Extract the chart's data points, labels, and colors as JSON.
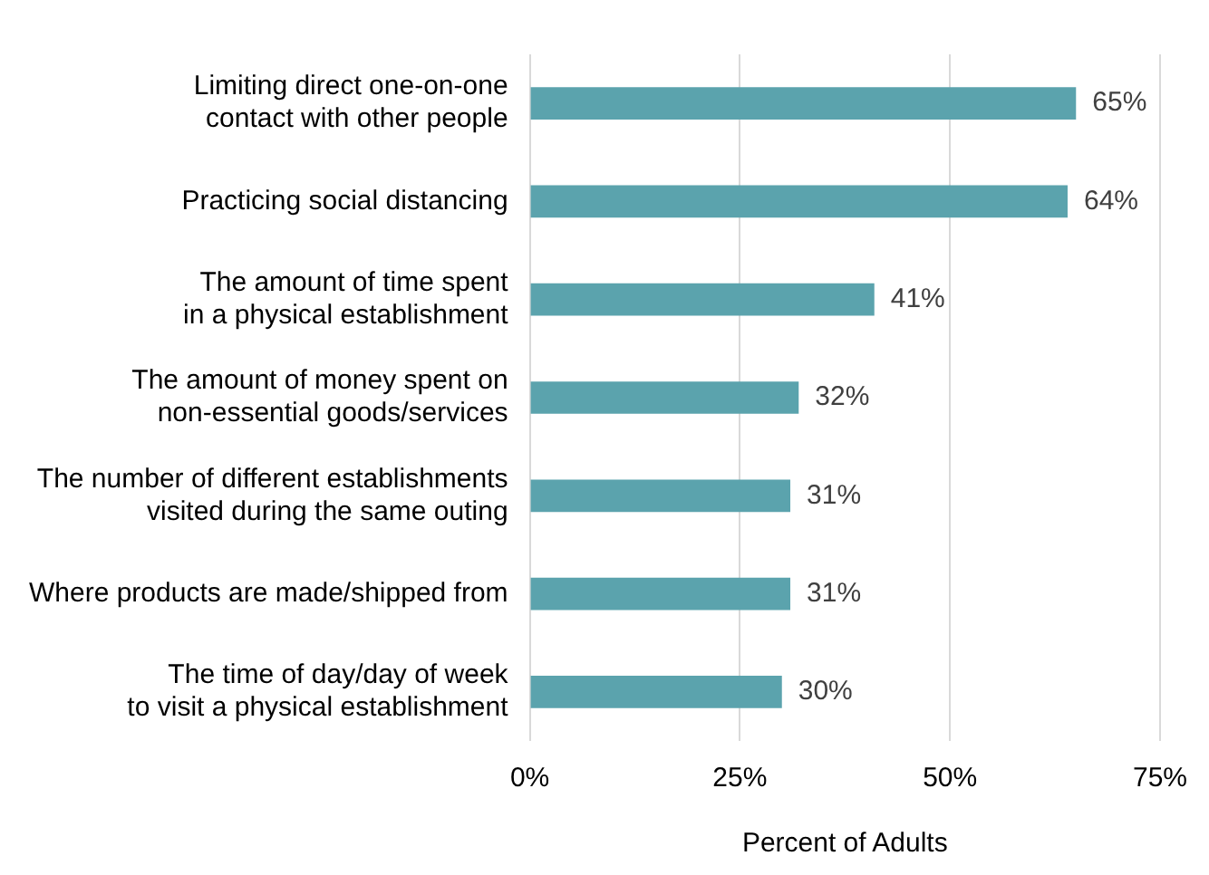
{
  "chart_data": {
    "type": "bar",
    "orientation": "horizontal",
    "xlabel": "Percent of Adults",
    "categories": [
      "Limiting direct one-on-one\ncontact with other people",
      "Practicing social distancing",
      "The amount of time spent\nin a physical establishment",
      "The amount of money spent on\nnon-essential goods/services",
      "The number of different establishments\nvisited during the same outing",
      "Where products are made/shipped from",
      "The time of day/day of week\nto visit a physical establishment"
    ],
    "values": [
      65,
      64,
      41,
      32,
      31,
      31,
      30
    ],
    "value_labels": [
      "65%",
      "64%",
      "41%",
      "32%",
      "31%",
      "31%",
      "30%"
    ],
    "color": "#5ba3ad",
    "xlim": [
      0,
      75
    ],
    "xticks": [
      {
        "value": 0,
        "label": "0%"
      },
      {
        "value": 25,
        "label": "25%"
      },
      {
        "value": 50,
        "label": "50%"
      },
      {
        "value": 75,
        "label": "75%"
      }
    ],
    "grid": "x"
  }
}
